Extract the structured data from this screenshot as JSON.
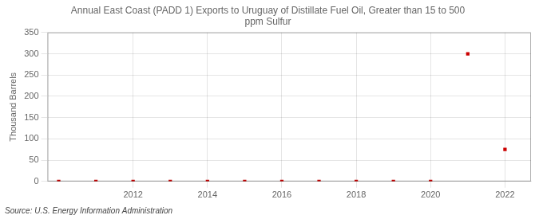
{
  "chart_data": {
    "type": "scatter",
    "title": "Annual East Coast (PADD 1) Exports to Uruguay of Distillate Fuel Oil, Greater than 15 to 500\nppm Sulfur",
    "y_label": "Thousand Barrels",
    "annotations": [
      "Source: U.S. Energy Information Administration"
    ],
    "x": [
      2010,
      2011,
      2012,
      2013,
      2014,
      2015,
      2016,
      2017,
      2018,
      2019,
      2020,
      2021,
      2022
    ],
    "values": [
      0,
      0,
      0,
      0,
      0,
      0,
      0,
      0,
      0,
      0,
      0,
      300,
      75
    ],
    "color": "#cc0000",
    "marker": "square",
    "xlim": [
      2009.7,
      2022.7
    ],
    "xticks": [
      2012,
      2014,
      2016,
      2018,
      2020,
      2022
    ],
    "ylim": [
      0,
      350
    ],
    "yticks": [
      0,
      50,
      100,
      150,
      200,
      250,
      300,
      350
    ],
    "grid": true
  }
}
